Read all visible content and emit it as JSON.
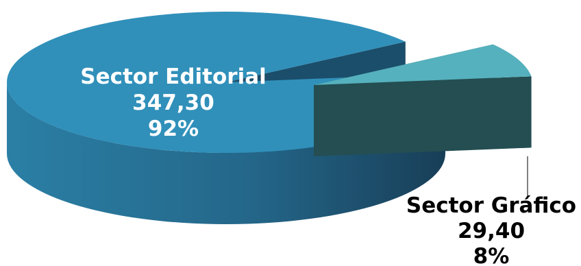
{
  "chart_data": {
    "type": "pie",
    "style": "3d-exploded",
    "slices": [
      {
        "category": "Sector Editorial",
        "value": 347.3,
        "value_label": "347,30",
        "percent_label": "92%",
        "color": "#3090BA",
        "dark": "#1B4E6B"
      },
      {
        "category": "Sector Gráfico",
        "value": 29.4,
        "value_label": "29,40",
        "percent_label": "8%",
        "color": "#55B1BD",
        "dark": "#244E52"
      }
    ],
    "label_colors": {
      "inside": "#FFFFFF",
      "outside": "#000000"
    }
  }
}
